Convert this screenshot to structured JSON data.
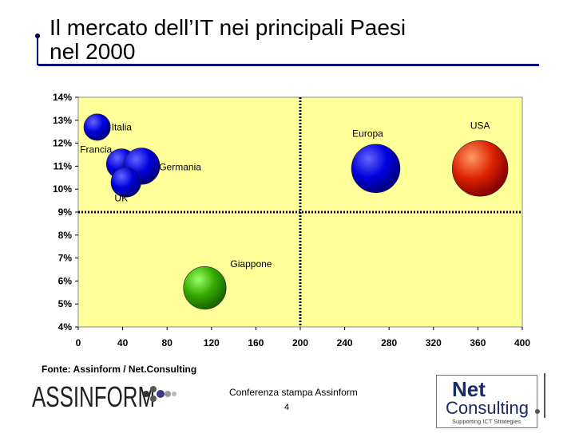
{
  "slide": {
    "title_line1": "Il mercato dell’IT nei principali Paesi",
    "title_line2": "nel 2000",
    "source": "Fonte: Assinform / Net.Consulting",
    "conference": "Conferenza stampa Assinform",
    "page_number": "4"
  },
  "logos": {
    "assinform": "ASSINFORM",
    "netconsulting_top": "Net",
    "netconsulting_bottom": "Consulting",
    "netconsulting_tagline": "Supporting ICT Strategies"
  },
  "chart_data": {
    "type": "scatter",
    "variant": "bubble",
    "x_ticks": [
      "0",
      "40",
      "80",
      "120",
      "160",
      "200",
      "240",
      "280",
      "320",
      "360",
      "400"
    ],
    "y_ticks": [
      "4%",
      "5%",
      "6%",
      "7%",
      "8%",
      "9%",
      "10%",
      "11%",
      "12%",
      "13%",
      "14%"
    ],
    "xlim": [
      0,
      400
    ],
    "ylim": [
      4,
      14
    ],
    "reference_lines": {
      "x": 200,
      "y": 9.0
    },
    "background": "#ffff99",
    "points": [
      {
        "label": "Italia",
        "x": 17,
        "y": 12.7,
        "size": 0.33,
        "color": "#0000cc"
      },
      {
        "label": "Francia",
        "x": 39,
        "y": 11.1,
        "size": 0.43,
        "color": "#0000cc"
      },
      {
        "label": "Germania",
        "x": 57,
        "y": 11.0,
        "size": 0.62,
        "color": "#0000cc"
      },
      {
        "label": "UK",
        "x": 43,
        "y": 10.3,
        "size": 0.42,
        "color": "#0000cc"
      },
      {
        "label": "Europa",
        "x": 268,
        "y": 10.9,
        "size": 1.1,
        "color": "#0000cc"
      },
      {
        "label": "USA",
        "x": 362,
        "y": 10.9,
        "size": 1.45,
        "color": "#cc2200"
      },
      {
        "label": "Giappone",
        "x": 114,
        "y": 5.7,
        "size": 0.85,
        "color": "#33aa00"
      }
    ]
  }
}
